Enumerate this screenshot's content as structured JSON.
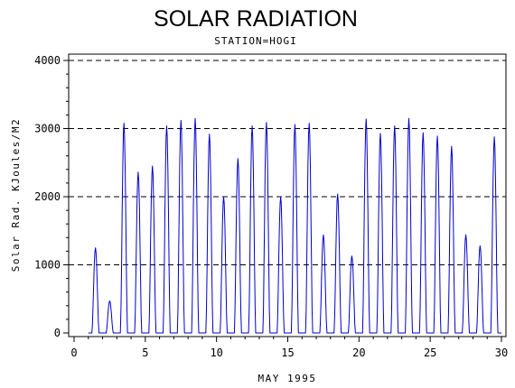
{
  "chart_data": {
    "type": "line",
    "title": "SOLAR RADIATION",
    "subtitle": "STATION=HOGI",
    "xlabel": "MAY 1995",
    "ylabel": "Solar Rad. KJoules/M2",
    "xlim": [
      0,
      30
    ],
    "ylim": [
      0,
      4000
    ],
    "x_ticks": [
      "0",
      "5",
      "10",
      "15",
      "20",
      "25",
      "30"
    ],
    "y_ticks": [
      "0",
      "1000",
      "2000",
      "3000",
      "4000"
    ],
    "grid": "horizontal dashed",
    "series": [
      {
        "color": "#0000cc",
        "daily_peaks": [
          1250,
          470,
          3080,
          2360,
          2450,
          3040,
          3120,
          3150,
          2920,
          2000,
          2560,
          3040,
          3090,
          2000,
          3060,
          3080,
          1440,
          2040,
          1130,
          3140,
          2930,
          3040,
          3150,
          2940,
          2890,
          2740,
          1440,
          1280,
          2880
        ]
      }
    ]
  }
}
